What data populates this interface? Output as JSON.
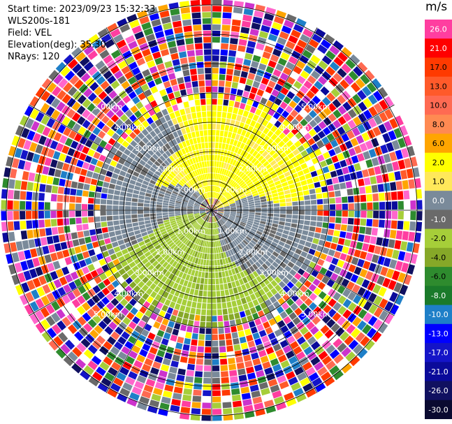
{
  "info": {
    "start_time": "Start time: 2023/09/23 15:32:33",
    "station": "WLS200s-181",
    "field": "Field: VEL",
    "elevation": "Elevation(deg): 35.30",
    "nrays": "NRays: 120"
  },
  "range_ring_labels": [
    "1.00km",
    "2.00km",
    "3.00km",
    "4.00km",
    "5.00km"
  ],
  "colorbar": {
    "unit": "m/s",
    "levels": [
      {
        "label": "26.0",
        "color": "#ff3ea0"
      },
      {
        "label": "21.0",
        "color": "#ff0000"
      },
      {
        "label": "17.0",
        "color": "#ff3a00"
      },
      {
        "label": "13.0",
        "color": "#ff5a2a"
      },
      {
        "label": "10.0",
        "color": "#ff6a52"
      },
      {
        "label": "8.0",
        "color": "#ff8a52"
      },
      {
        "label": "6.0",
        "color": "#ffa500"
      },
      {
        "label": "2.0",
        "color": "#ffff00"
      },
      {
        "label": "1.0",
        "color": "#ffe85a"
      },
      {
        "label": "0.0",
        "color": "#7a8a9a"
      },
      {
        "label": "-1.0",
        "color": "#6a6a6a"
      },
      {
        "label": "-2.0",
        "color": "#a6ce39"
      },
      {
        "label": "-4.0",
        "color": "#86a828"
      },
      {
        "label": "-6.0",
        "color": "#2e8b2e"
      },
      {
        "label": "-8.0",
        "color": "#1a7a2a"
      },
      {
        "label": "-10.0",
        "color": "#1e7fc8"
      },
      {
        "label": "-13.0",
        "color": "#0000ff"
      },
      {
        "label": "-17.0",
        "color": "#1414c8"
      },
      {
        "label": "-21.0",
        "color": "#0a0a9a"
      },
      {
        "label": "-26.0",
        "color": "#101060"
      },
      {
        "label": "-30.0",
        "color": "#0a0a30"
      }
    ]
  }
}
